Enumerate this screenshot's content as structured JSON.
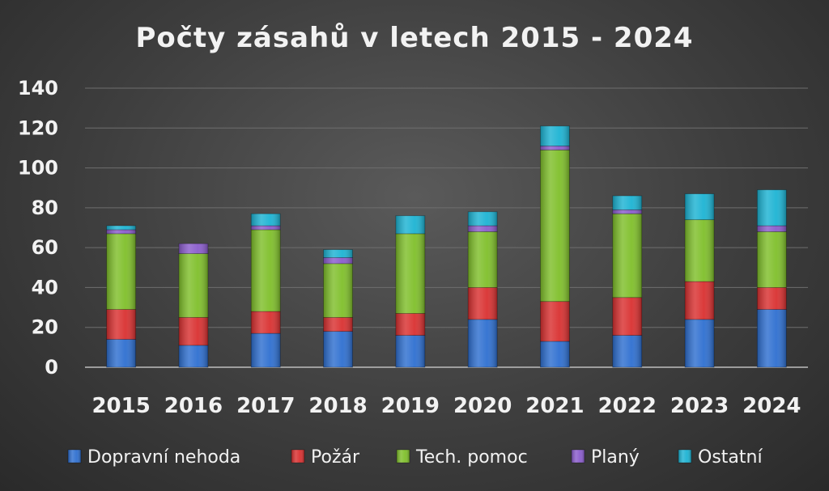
{
  "chart_data": {
    "type": "bar",
    "stacked": true,
    "title": "Počty zásahů v letech 2015 - 2024",
    "xlabel": "",
    "ylabel": "",
    "categories": [
      "2015",
      "2016",
      "2017",
      "2018",
      "2019",
      "2020",
      "2021",
      "2022",
      "2023",
      "2024"
    ],
    "ylim": [
      0,
      140
    ],
    "yticks": [
      0,
      20,
      40,
      60,
      80,
      100,
      120,
      140
    ],
    "grid": true,
    "legend_position": "bottom",
    "series": [
      {
        "name": "Dopravní nehoda",
        "color": "#2e6fd0",
        "values": [
          14,
          11,
          17,
          18,
          16,
          24,
          13,
          16,
          24,
          29
        ]
      },
      {
        "name": "Požár",
        "color": "#d93030",
        "values": [
          15,
          14,
          11,
          7,
          11,
          16,
          20,
          19,
          19,
          11
        ]
      },
      {
        "name": "Tech. pomoc",
        "color": "#7fbf2a",
        "values": [
          38,
          32,
          41,
          27,
          40,
          28,
          76,
          42,
          31,
          28
        ]
      },
      {
        "name": "Planý",
        "color": "#8a5ccc",
        "values": [
          2,
          5,
          2,
          3,
          0,
          3,
          2,
          2,
          0,
          3
        ]
      },
      {
        "name": "Ostatní",
        "color": "#1cb3d3",
        "values": [
          2,
          0,
          6,
          4,
          9,
          7,
          10,
          7,
          13,
          18
        ]
      }
    ]
  }
}
